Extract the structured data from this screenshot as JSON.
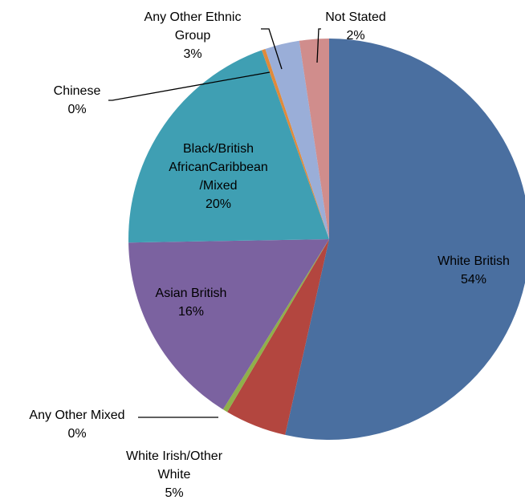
{
  "chart_data": {
    "type": "pie",
    "title": "",
    "slices": [
      {
        "name": "White British",
        "value": 54,
        "label_lines": [
          "White British",
          "54%"
        ],
        "color": "#4a6fa0"
      },
      {
        "name": "White Irish/Other White",
        "value": 5,
        "label_lines": [
          "White Irish/Other",
          "White",
          "5%"
        ],
        "color": "#b3463f"
      },
      {
        "name": "Any Other Mixed",
        "value": 0.4,
        "label_lines": [
          "Any Other Mixed",
          "0%"
        ],
        "color": "#8fb04a"
      },
      {
        "name": "Asian British",
        "value": 16,
        "label_lines": [
          "Asian British",
          "16%"
        ],
        "color": "#7b62a0"
      },
      {
        "name": "Black/British AfricanCaribbean /Mixed",
        "value": 20,
        "label_lines": [
          "Black/British",
          "AfricanCaribbean",
          "/Mixed",
          "20%"
        ],
        "color": "#3f9fb3"
      },
      {
        "name": "Chinese",
        "value": 0.3,
        "label_lines": [
          "Chinese",
          "0%"
        ],
        "color": "#e08a3a"
      },
      {
        "name": "Any Other Ethnic Group",
        "value": 2.8,
        "label_lines": [
          "Any Other Ethnic",
          "Group",
          "3%"
        ],
        "color": "#9aaed8"
      },
      {
        "name": "Not Stated",
        "value": 2.4,
        "label_lines": [
          "Not Stated",
          "2%"
        ],
        "color": "#d08d8c"
      }
    ]
  }
}
